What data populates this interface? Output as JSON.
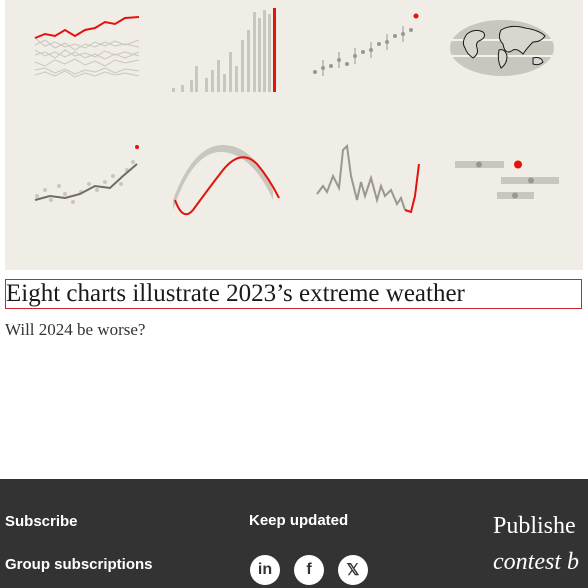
{
  "article": {
    "headline": "Eight charts illustrate 2023’s extreme weather",
    "subtitle": "Will 2024 be worse?",
    "image_icon": "eight-mini-weather-charts"
  },
  "footer": {
    "links": [
      "Subscribe",
      "Group subscriptions"
    ],
    "keep_updated": "Keep updated",
    "social": [
      {
        "name": "linkedin-icon",
        "glyph": "in"
      },
      {
        "name": "facebook-icon",
        "glyph": "f"
      },
      {
        "name": "x-icon",
        "glyph": "𝕏"
      }
    ],
    "published_line1": "Publishe",
    "published_line2": "contest b"
  },
  "colors": {
    "accent": "#c8272f",
    "footer_bg": "#333333",
    "hero_bg": "#f0ede6"
  }
}
